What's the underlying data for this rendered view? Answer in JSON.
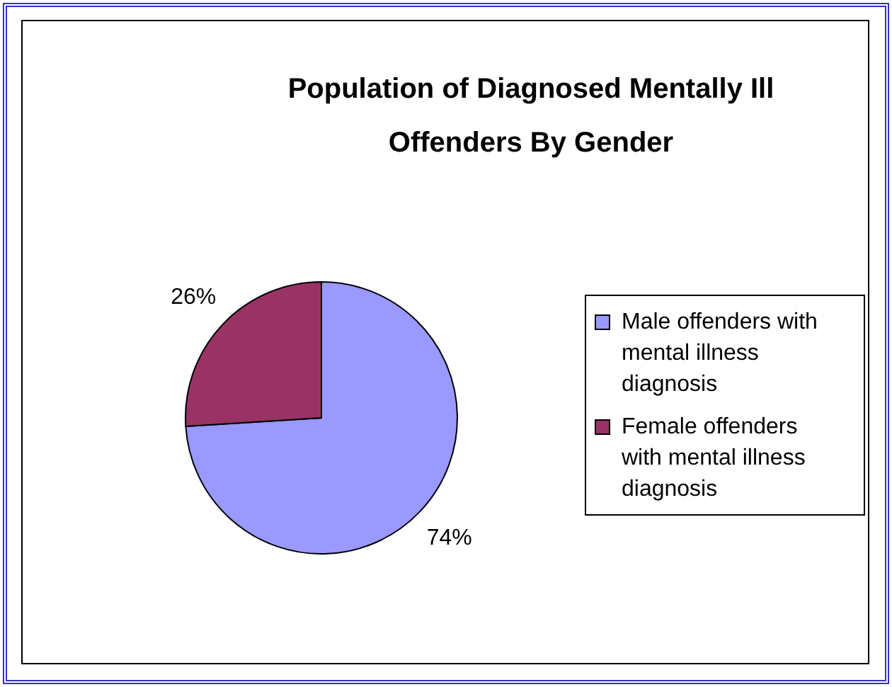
{
  "chart_data": {
    "type": "pie",
    "title": "Population of Diagnosed Mentally Ill Offenders By Gender",
    "categories": [
      "Male offenders with mental illness diagnosis",
      "Female offenders with mental illness diagnosis"
    ],
    "values": [
      74,
      26
    ],
    "colors": [
      "#9999ff",
      "#993366"
    ],
    "value_labels": [
      "74%",
      "26%"
    ],
    "legend": "right"
  }
}
